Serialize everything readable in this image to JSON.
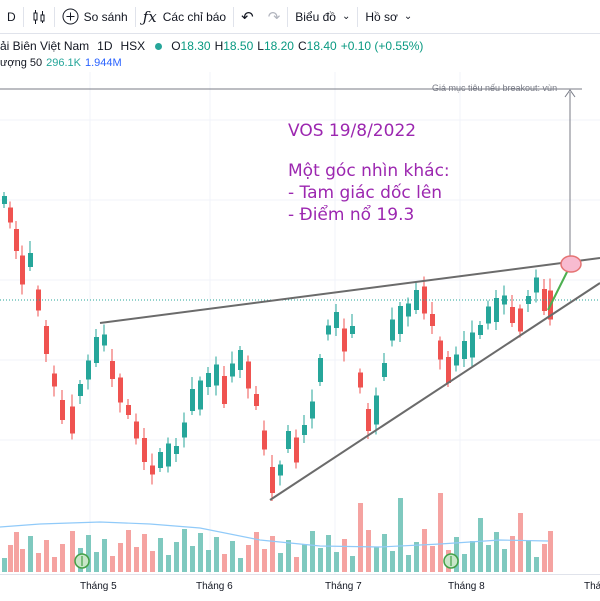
{
  "toolbar": {
    "interval": "D",
    "compare_label": "So sánh",
    "indicators_label": "Các chỉ báo",
    "layout_label": "Biểu đồ",
    "profile_label": "Hồ sơ",
    "icons": [
      "candles-icon",
      "plus-circle-icon",
      "function-icon",
      "undo-icon",
      "redo-icon"
    ]
  },
  "legend": {
    "symbol_name": "ải Biên Việt Nam",
    "timeframe": "1D",
    "exchange": "HSX",
    "open_label": "O",
    "open": "18.30",
    "high_label": "H",
    "high": "18.50",
    "low_label": "L",
    "low": "18.20",
    "close_label": "C",
    "close": "18.40",
    "change": "+0.10 (+0.55%)",
    "volume_label": "ượng 50",
    "volume": "296.1K",
    "volume_ma": "1.944M"
  },
  "annotation": {
    "line1": "VOS 19/8/2022",
    "line2": "Một góc nhìn khác:",
    "line3": "- Tam giác dốc lên",
    "line4": "- Điểm nổ 19.3"
  },
  "target_label": "Giá mục tiêu nếu breakout: vùn",
  "xaxis": {
    "labels": [
      "Tháng 5",
      "Tháng 6",
      "Tháng 7",
      "Tháng 8",
      "Tháng"
    ]
  },
  "colors": {
    "up": "#26a69a",
    "down": "#ef5350",
    "annotation": "#9c27b0",
    "trendline": "#787b86",
    "volume_ma": "#2196f3"
  }
}
